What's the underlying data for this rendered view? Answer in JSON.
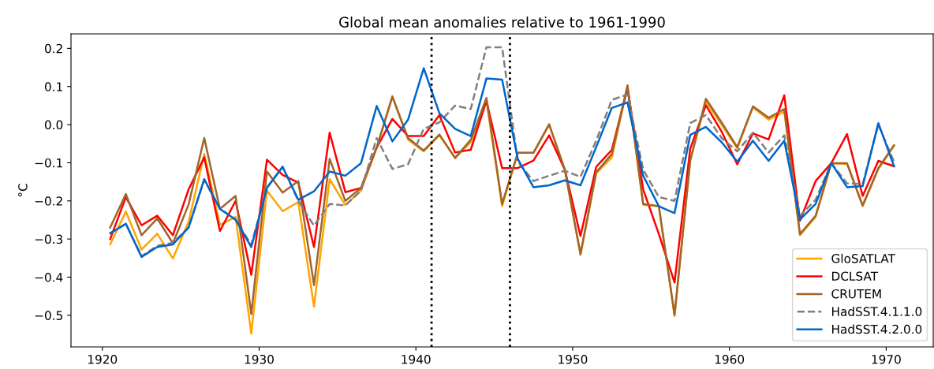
{
  "chart_data": {
    "type": "line",
    "title": "Global mean anomalies relative to 1961-1990",
    "ylabel": "°C",
    "x": [
      1920.5,
      1921.5,
      1922.5,
      1923.5,
      1924.5,
      1925.5,
      1926.5,
      1927.5,
      1928.5,
      1929.5,
      1930.5,
      1931.5,
      1932.5,
      1933.5,
      1934.5,
      1935.5,
      1936.5,
      1937.5,
      1938.5,
      1939.5,
      1940.5,
      1941.5,
      1942.5,
      1943.5,
      1944.5,
      1945.5,
      1946.5,
      1947.5,
      1948.5,
      1949.5,
      1950.5,
      1951.5,
      1952.5,
      1953.5,
      1954.5,
      1955.5,
      1956.5,
      1957.5,
      1958.5,
      1959.5,
      1960.5,
      1961.5,
      1962.5,
      1963.5,
      1964.5,
      1965.5,
      1966.5,
      1967.5,
      1968.5,
      1969.5,
      1970.5
    ],
    "series": [
      {
        "name": "GloSATLAT",
        "color": "#ffa500",
        "line_style": "solid",
        "values": [
          -0.314,
          -0.228,
          -0.328,
          -0.286,
          -0.351,
          -0.255,
          -0.077,
          -0.263,
          -0.242,
          -0.548,
          -0.173,
          -0.227,
          -0.203,
          -0.477,
          -0.143,
          -0.211,
          -0.173,
          -0.06,
          0.075,
          -0.039,
          -0.07,
          -0.028,
          -0.088,
          -0.046,
          0.063,
          -0.214,
          -0.074,
          -0.074,
          0.0,
          -0.118,
          -0.342,
          -0.128,
          -0.086,
          0.1,
          -0.21,
          -0.214,
          -0.502,
          -0.094,
          0.061,
          0.0,
          -0.062,
          0.045,
          0.013,
          0.034,
          -0.29,
          -0.242,
          -0.101,
          -0.103,
          -0.214,
          -0.116,
          -0.056
        ]
      },
      {
        "name": "DCLSAT",
        "color": "#ff0000",
        "line_style": "solid",
        "values": [
          -0.3,
          -0.19,
          -0.264,
          -0.239,
          -0.29,
          -0.17,
          -0.086,
          -0.279,
          -0.2,
          -0.394,
          -0.092,
          -0.132,
          -0.152,
          -0.321,
          -0.021,
          -0.177,
          -0.166,
          -0.06,
          0.015,
          -0.03,
          -0.03,
          0.025,
          -0.073,
          -0.066,
          0.063,
          -0.114,
          -0.114,
          -0.094,
          -0.028,
          -0.118,
          -0.292,
          -0.111,
          -0.066,
          0.096,
          -0.17,
          -0.287,
          -0.414,
          -0.063,
          0.051,
          -0.018,
          -0.104,
          -0.023,
          -0.039,
          0.077,
          -0.252,
          -0.148,
          -0.101,
          -0.025,
          -0.187,
          -0.095,
          -0.109
        ]
      },
      {
        "name": "CRUTEM",
        "color": "#a0652d",
        "line_style": "solid",
        "values": [
          -0.27,
          -0.182,
          -0.29,
          -0.246,
          -0.311,
          -0.21,
          -0.035,
          -0.221,
          -0.187,
          -0.497,
          -0.123,
          -0.178,
          -0.148,
          -0.421,
          -0.09,
          -0.2,
          -0.166,
          -0.06,
          0.073,
          -0.035,
          -0.068,
          -0.026,
          -0.087,
          -0.04,
          0.07,
          -0.208,
          -0.074,
          -0.074,
          0.001,
          -0.118,
          -0.339,
          -0.125,
          -0.077,
          0.103,
          -0.208,
          -0.214,
          -0.499,
          -0.094,
          0.068,
          0.006,
          -0.059,
          0.048,
          0.018,
          0.041,
          -0.287,
          -0.239,
          -0.101,
          -0.101,
          -0.212,
          -0.114,
          -0.054
        ]
      },
      {
        "name": "HadSST.4.1.1.0",
        "color": "#808080",
        "line_style": "dashed",
        "values": [
          -0.285,
          -0.26,
          -0.345,
          -0.318,
          -0.31,
          -0.27,
          -0.145,
          -0.22,
          -0.25,
          -0.315,
          -0.165,
          -0.11,
          -0.2,
          -0.265,
          -0.208,
          -0.212,
          -0.173,
          -0.035,
          -0.116,
          -0.104,
          -0.011,
          0.006,
          0.05,
          0.041,
          0.203,
          0.203,
          -0.097,
          -0.148,
          -0.134,
          -0.121,
          -0.137,
          -0.042,
          0.065,
          0.079,
          -0.118,
          -0.19,
          -0.2,
          0.004,
          0.025,
          -0.035,
          -0.07,
          -0.021,
          -0.073,
          -0.028,
          -0.239,
          -0.197,
          -0.101,
          -0.154,
          -0.156,
          0.0,
          -0.097
        ]
      },
      {
        "name": "HadSST.4.2.0.0",
        "color": "#0066cc",
        "line_style": "solid",
        "values": [
          -0.285,
          -0.26,
          -0.347,
          -0.321,
          -0.314,
          -0.27,
          -0.143,
          -0.221,
          -0.249,
          -0.321,
          -0.166,
          -0.111,
          -0.197,
          -0.175,
          -0.123,
          -0.134,
          -0.101,
          0.049,
          -0.044,
          0.013,
          0.148,
          0.03,
          -0.011,
          -0.03,
          0.121,
          0.118,
          -0.09,
          -0.164,
          -0.159,
          -0.146,
          -0.159,
          -0.059,
          0.044,
          0.058,
          -0.134,
          -0.214,
          -0.232,
          -0.027,
          -0.006,
          -0.046,
          -0.097,
          -0.042,
          -0.095,
          -0.042,
          -0.249,
          -0.208,
          -0.101,
          -0.164,
          -0.161,
          0.004,
          -0.109
        ]
      }
    ],
    "xlim": [
      1918,
      1973
    ],
    "xticks": [
      1920,
      1930,
      1940,
      1950,
      1960,
      1970
    ],
    "ylim": [
      -0.583,
      0.238
    ],
    "yticks": [
      {
        "value": -0.5,
        "label": "−0.5"
      },
      {
        "value": -0.4,
        "label": "−0.4"
      },
      {
        "value": -0.3,
        "label": "−0.3"
      },
      {
        "value": -0.2,
        "label": "−0.2"
      },
      {
        "value": -0.1,
        "label": "−0.1"
      },
      {
        "value": 0.0,
        "label": "0.0"
      },
      {
        "value": 0.1,
        "label": "0.1"
      },
      {
        "value": 0.2,
        "label": "0.2"
      }
    ],
    "ref_lines": [
      {
        "axis": "x",
        "value": 1941,
        "color": "#000000",
        "line_style": "dotted"
      },
      {
        "axis": "x",
        "value": 1946,
        "color": "#000000",
        "line_style": "dotted"
      }
    ],
    "grid": false,
    "legend": "bottom right",
    "marker": "none"
  }
}
